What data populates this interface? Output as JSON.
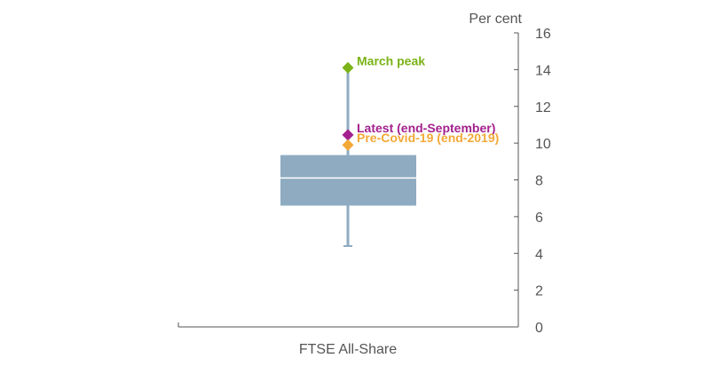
{
  "chart_data": {
    "type": "box",
    "title": "",
    "y_unit_label": "Per cent",
    "xlabel": "",
    "ylabel": "Per cent",
    "ylim": [
      0,
      16
    ],
    "y_ticks": [
      0,
      2,
      4,
      6,
      8,
      10,
      12,
      14,
      16
    ],
    "y_axis_side": "right",
    "grid": false,
    "categories": [
      "FTSE All-Share"
    ],
    "box": {
      "min": 4.4,
      "q1": 6.6,
      "median": 8.1,
      "q3": 9.35,
      "max": 14.1
    },
    "markers": [
      {
        "label": "March peak",
        "value": 14.1,
        "color": "#7ab317"
      },
      {
        "label": "Latest (end-September)",
        "value": 10.45,
        "color": "#a3218e"
      },
      {
        "label": "Pre-Covid-19 (end-2019)",
        "value": 9.9,
        "color": "#f3a937"
      }
    ],
    "colors": {
      "box_fill": "#8eabc1",
      "whisker": "#8eabc1",
      "median_line": "#ffffff",
      "axis": "#555555",
      "text": "#555555"
    }
  }
}
